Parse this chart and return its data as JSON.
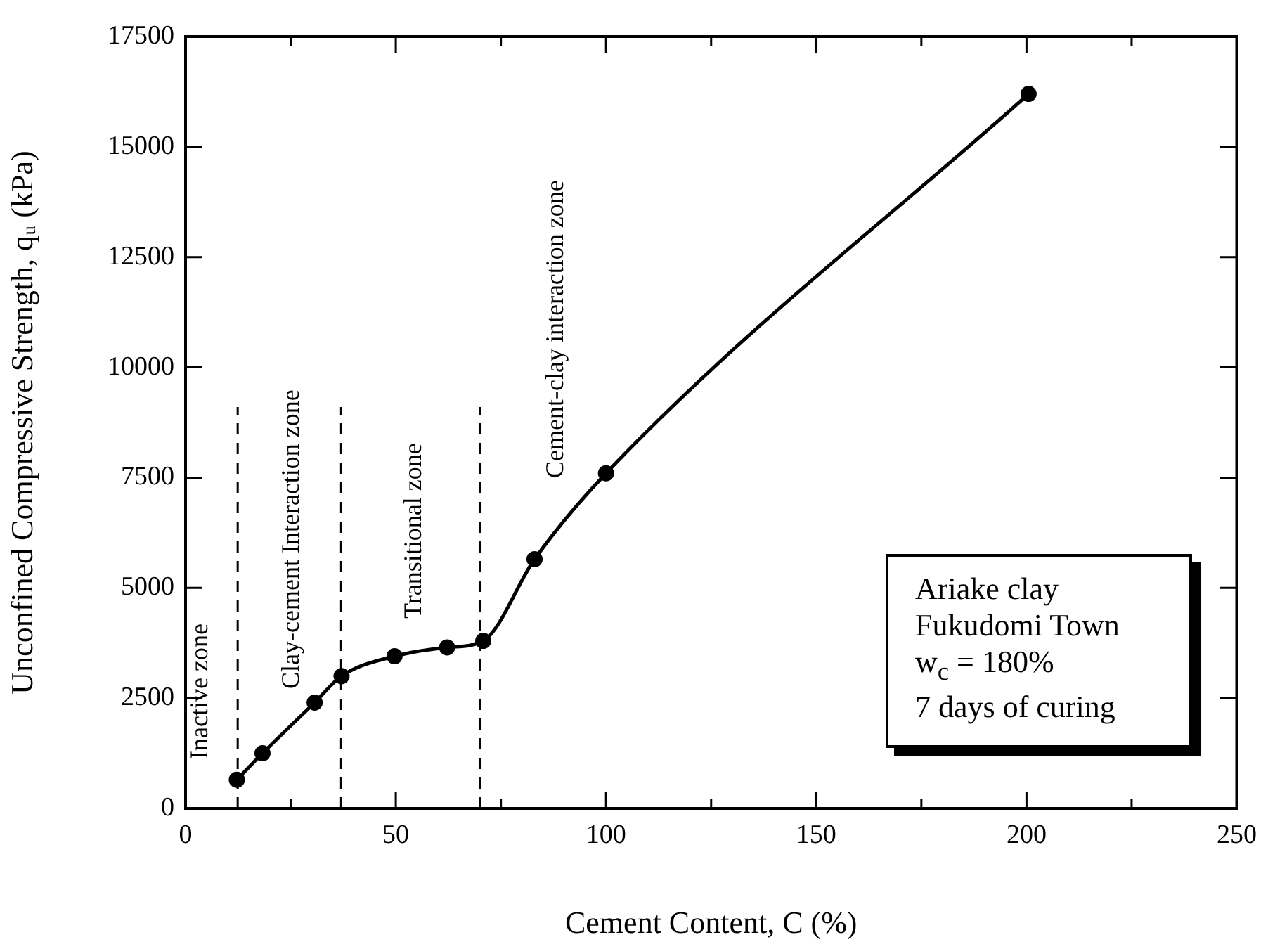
{
  "chart_data": {
    "type": "line",
    "xlabel": "Cement Content, C (%)",
    "ylabel": "Unconfined Compressive Strength, qᵤ (kPa)",
    "x": [
      12.2,
      18.3,
      30.7,
      37.1,
      49.7,
      62.2,
      70.8,
      83,
      100,
      200.5
    ],
    "series": [
      {
        "color": "#000000",
        "values": [
          650,
          1250,
          2400,
          3000,
          3450,
          3650,
          3800,
          5650,
          7600,
          16200
        ]
      }
    ],
    "xlim": [
      0,
      250
    ],
    "xticks": [
      0,
      {
        "value": 25,
        "label": null
      },
      50,
      {
        "value": 75,
        "label": null
      },
      100,
      {
        "value": 125,
        "label": null
      },
      150,
      {
        "value": 175,
        "label": null
      },
      200,
      {
        "value": 225,
        "label": null
      },
      250
    ],
    "ylim": [
      0,
      17500
    ],
    "yticks": [
      0,
      2500,
      5000,
      7500,
      10000,
      12500,
      15000,
      17500
    ],
    "ref_lines": [
      {
        "axis": "x",
        "value": 12.4,
        "color": "#000000",
        "line_style": "dashed"
      },
      {
        "axis": "x",
        "value": 37,
        "color": "#000000",
        "line_style": "dashed"
      },
      {
        "axis": "x",
        "value": 70,
        "color": "#000000",
        "line_style": "dashed"
      }
    ],
    "annotations": [
      "Inactive zone",
      "Clay-cement Interaction zone",
      "Transitional zone",
      "Cement-clay interaction zone",
      "Ariake clay",
      "Fukudomi Town",
      "w$_{c}$ = 180%",
      "7 days of curing"
    ],
    "grid": false,
    "legend": false,
    "marker": "circle",
    "line_style": "solid"
  }
}
